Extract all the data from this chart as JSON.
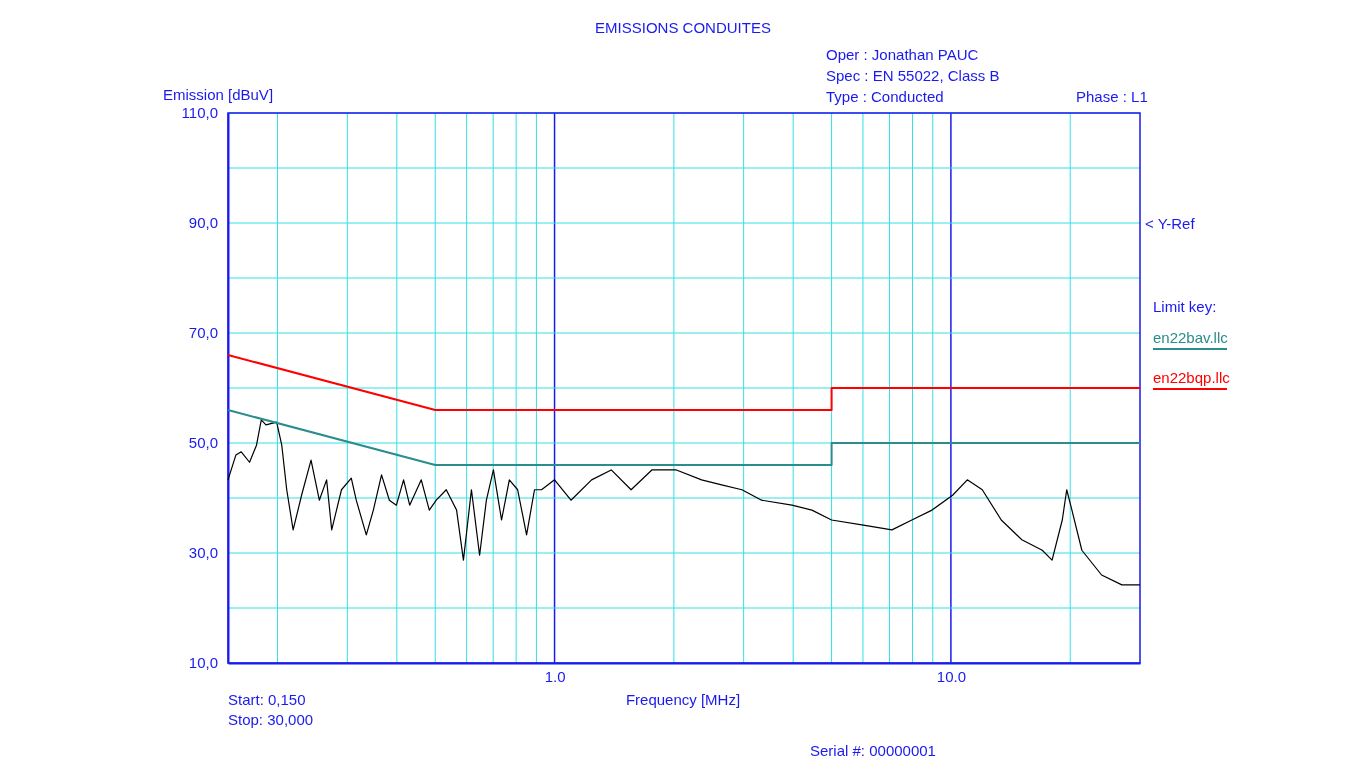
{
  "chart_data": {
    "type": "line",
    "title": "EMISSIONS CONDUITES",
    "xlabel": "Frequency [MHz]",
    "ylabel": "Emission [dBuV]",
    "legend_title": "Limit key:",
    "legend": "right",
    "log": "x",
    "grid": true,
    "xlim": [
      0.15,
      30
    ],
    "ylim": [
      10,
      110
    ],
    "xticks": [
      {
        "value": 0.2,
        "label": null
      },
      {
        "value": 0.3,
        "label": null
      },
      {
        "value": 0.4,
        "label": null
      },
      {
        "value": 0.5,
        "label": null
      },
      {
        "value": 0.6,
        "label": null
      },
      {
        "value": 0.7,
        "label": null
      },
      {
        "value": 0.8,
        "label": null
      },
      {
        "value": 0.9,
        "label": null
      },
      {
        "value": 1,
        "label": "1.0"
      },
      {
        "value": 2,
        "label": null
      },
      {
        "value": 3,
        "label": null
      },
      {
        "value": 4,
        "label": null
      },
      {
        "value": 5,
        "label": null
      },
      {
        "value": 6,
        "label": null
      },
      {
        "value": 7,
        "label": null
      },
      {
        "value": 8,
        "label": null
      },
      {
        "value": 9,
        "label": null
      },
      {
        "value": 10,
        "label": "10.0"
      },
      {
        "value": 20,
        "label": null
      }
    ],
    "yticks": [
      {
        "value": 10,
        "label": "10,0"
      },
      {
        "value": 20,
        "label": null
      },
      {
        "value": 30,
        "label": "30,0"
      },
      {
        "value": 40,
        "label": null
      },
      {
        "value": 50,
        "label": "50,0"
      },
      {
        "value": 60,
        "label": null
      },
      {
        "value": 70,
        "label": "70,0"
      },
      {
        "value": 80,
        "label": null
      },
      {
        "value": 90,
        "label": "90,0"
      },
      {
        "value": 100,
        "label": null
      },
      {
        "value": 110,
        "label": "110,0"
      }
    ],
    "series": [
      {
        "color": "#000000",
        "x": [
          0.15,
          0.157,
          0.162,
          0.17,
          0.177,
          0.182,
          0.187,
          0.199,
          0.205,
          0.211,
          0.219,
          0.23,
          0.243,
          0.255,
          0.266,
          0.274,
          0.29,
          0.307,
          0.316,
          0.335,
          0.349,
          0.366,
          0.383,
          0.399,
          0.416,
          0.431,
          0.461,
          0.483,
          0.503,
          0.533,
          0.566,
          0.589,
          0.617,
          0.647,
          0.673,
          0.701,
          0.735,
          0.769,
          0.807,
          0.85,
          0.89,
          0.927,
          1.0,
          1.1,
          1.24,
          1.39,
          1.56,
          1.76,
          2.03,
          2.35,
          2.64,
          2.97,
          3.33,
          3.97,
          4.46,
          5.0,
          5.96,
          7.1,
          7.97,
          8.96,
          10.1,
          11.0,
          12.0,
          13.4,
          15.1,
          17.0,
          18.0,
          19.1,
          19.6,
          20.2,
          21.4,
          24.0,
          27.0,
          30
        ],
        "values": [
          43.3,
          47.8,
          48.4,
          46.5,
          49.6,
          54.2,
          53.3,
          53.8,
          49.6,
          41.5,
          34.2,
          40.5,
          46.9,
          39.6,
          43.3,
          34.2,
          41.5,
          43.6,
          39.6,
          33.3,
          37.8,
          44.2,
          39.6,
          38.7,
          43.3,
          38.7,
          43.3,
          37.8,
          39.6,
          41.5,
          37.8,
          28.7,
          41.5,
          29.6,
          39.6,
          45.1,
          36.0,
          43.3,
          41.5,
          33.3,
          41.5,
          41.5,
          43.3,
          39.6,
          43.3,
          45.1,
          41.5,
          45.1,
          45.1,
          43.3,
          42.4,
          41.5,
          39.6,
          38.7,
          37.8,
          36.0,
          35.1,
          34.2,
          36.0,
          37.8,
          40.5,
          43.3,
          41.5,
          36.0,
          32.4,
          30.5,
          28.7,
          36.0,
          41.5,
          37.8,
          30.5,
          26.0,
          24.2,
          24.2
        ]
      },
      {
        "name": "en22bav.llc",
        "color": "#2a8c8c",
        "x": [
          0.15,
          0.5,
          5,
          5,
          30
        ],
        "values": [
          56,
          46,
          46,
          50,
          50
        ]
      },
      {
        "name": "en22bqp.llc",
        "color": "#ff0000",
        "x": [
          0.15,
          0.5,
          5,
          5,
          30
        ],
        "values": [
          66,
          56,
          56,
          60,
          60
        ]
      }
    ],
    "annotations": [
      "Oper : Jonathan PAUC",
      "Spec : EN 55022, Class B",
      "Type : Conducted",
      "Phase : L1",
      "< Y-Ref",
      "Start: 0,150",
      "Stop: 30,000",
      "Serial #: 00000001"
    ]
  }
}
